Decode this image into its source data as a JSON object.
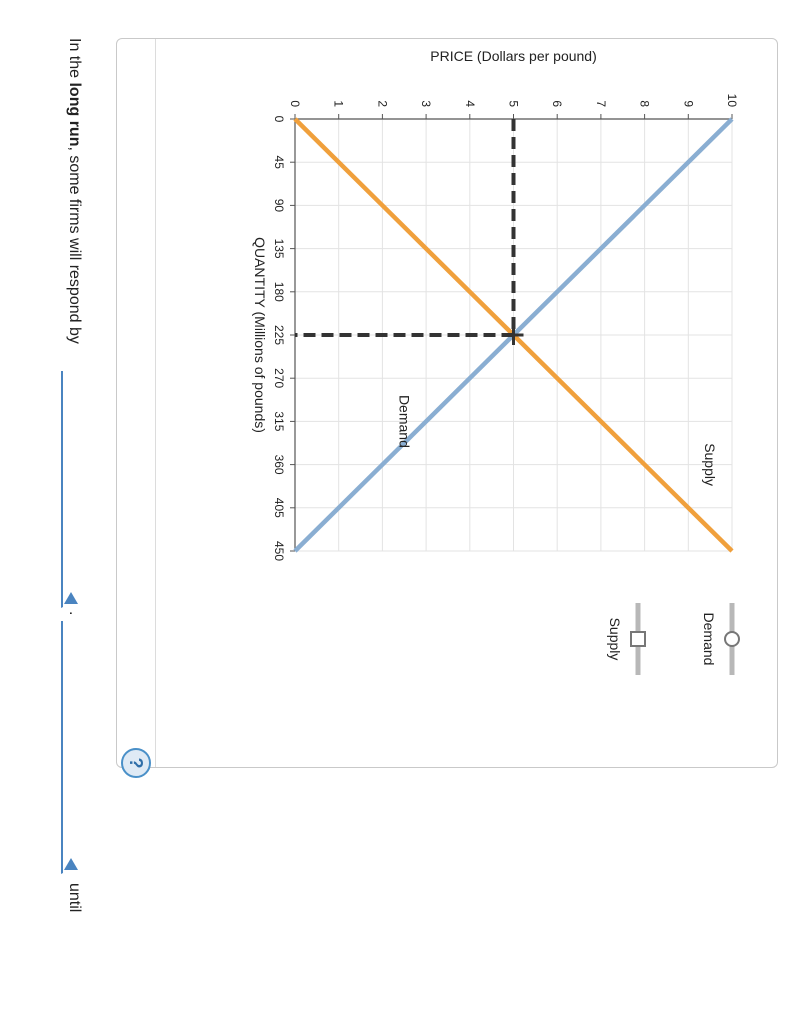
{
  "chart_data": {
    "type": "line",
    "ylabel": "PRICE (Dollars per pound)",
    "xlabel": "QUANTITY (Millions of pounds)",
    "x_ticks": [
      0,
      45,
      90,
      135,
      180,
      225,
      270,
      315,
      360,
      405,
      450
    ],
    "y_ticks": [
      0,
      1,
      2,
      3,
      4,
      5,
      6,
      7,
      8,
      9,
      10
    ],
    "xlim": [
      0,
      450
    ],
    "ylim": [
      0,
      10
    ],
    "series": [
      {
        "name": "Demand",
        "color": "#8aaed2",
        "points": [
          [
            0,
            10
          ],
          [
            450,
            0
          ]
        ]
      },
      {
        "name": "Supply",
        "color": "#f0a03c",
        "points": [
          [
            0,
            0
          ],
          [
            450,
            10
          ]
        ]
      }
    ],
    "equilibrium": {
      "x": 225,
      "y": 5
    },
    "curve_labels": [
      {
        "text": "Demand",
        "x": 315,
        "y": 2.5
      },
      {
        "text": "Supply",
        "x": 360,
        "y": 9.5
      }
    ],
    "legend": [
      {
        "label": "Demand",
        "marker": "circle"
      },
      {
        "label": "Supply",
        "marker": "square"
      }
    ]
  },
  "help": {
    "label": "?"
  },
  "question": {
    "prefix": "In the ",
    "bold": "long run",
    "mid": ", some firms will respond by",
    "period": ".",
    "until": "until"
  }
}
